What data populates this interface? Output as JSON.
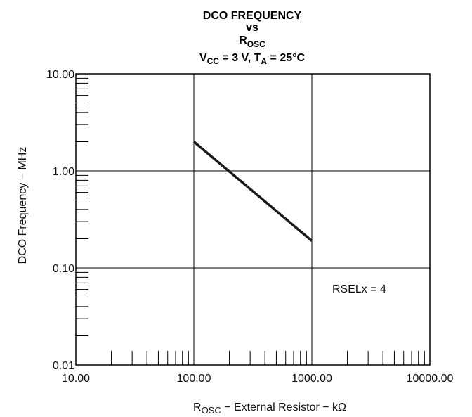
{
  "chart_data": {
    "type": "line",
    "title": {
      "line1": "DCO FREQUENCY",
      "line2": "vs",
      "line3_main": "R",
      "line3_sub": "OSC",
      "line4_a": "V",
      "line4_a_sub": "CC",
      "line4_b": " = 3 V, T",
      "line4_b_sub": "A",
      "line4_c": " = 25°C"
    },
    "xlabel": {
      "main": "R",
      "sub": "OSC",
      "rest": " − External Resistor − kΩ"
    },
    "ylabel": "DCO Frequency − MHz",
    "x_scale": "log",
    "y_scale": "log",
    "xlim": [
      10,
      10000
    ],
    "ylim": [
      0.01,
      10
    ],
    "x_tick_values": [
      10,
      100,
      1000,
      10000
    ],
    "x_tick_labels": [
      "10.00",
      "100.00",
      "1000.00",
      "10000.00"
    ],
    "y_tick_values": [
      0.01,
      0.1,
      1,
      10
    ],
    "y_tick_labels": [
      "0.01",
      "0.10",
      "1.00",
      "10.00"
    ],
    "grid": true,
    "series": [
      {
        "x": [
          100,
          1000
        ],
        "y": [
          2.0,
          0.19
        ]
      }
    ],
    "annotation": "RSELx = 4",
    "line_color": "#1a1a1a"
  }
}
